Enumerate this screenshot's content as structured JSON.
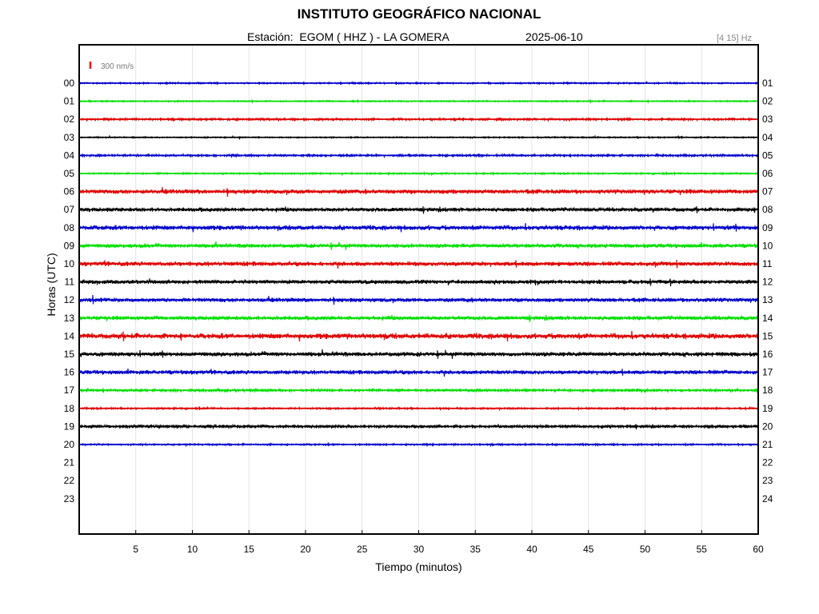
{
  "header": {
    "title": "INSTITUTO GEOGRÁFICO NACIONAL",
    "station_label": "Estación:  EGOM ( HHZ ) - LA GOMERA",
    "date": "2025-06-10",
    "filter": "[4 15] Hz"
  },
  "scale_bar": {
    "label": "300 nm/s",
    "color": "#ff0000"
  },
  "colors": {
    "black": "#000000",
    "red": "#e00000",
    "blue": "#0000cc",
    "green": "#00e000",
    "grid": "#e4e4e4"
  },
  "chart_data": {
    "type": "line",
    "xlabel": "Tiempo (minutos)",
    "ylabel": "Horas (UTC)",
    "xlim": [
      0,
      60
    ],
    "x_ticks": [
      5,
      10,
      15,
      20,
      25,
      30,
      35,
      40,
      45,
      50,
      55,
      60
    ],
    "left_hour_labels": [
      "00",
      "01",
      "02",
      "03",
      "04",
      "05",
      "06",
      "07",
      "08",
      "09",
      "10",
      "11",
      "12",
      "13",
      "14",
      "15",
      "16",
      "17",
      "18",
      "19",
      "20",
      "21",
      "22",
      "23"
    ],
    "right_hour_labels": [
      "01",
      "02",
      "03",
      "04",
      "05",
      "06",
      "07",
      "08",
      "09",
      "10",
      "11",
      "12",
      "13",
      "14",
      "15",
      "16",
      "17",
      "18",
      "19",
      "20",
      "21",
      "22",
      "23",
      "24"
    ],
    "grid": true,
    "traces": [
      {
        "hour": "00",
        "color": "blue",
        "amplitude": 0.7,
        "end_minute": 60
      },
      {
        "hour": "01",
        "color": "green",
        "amplitude": 0.6,
        "end_minute": 60
      },
      {
        "hour": "02",
        "color": "red",
        "amplitude": 1.0,
        "end_minute": 60
      },
      {
        "hour": "03",
        "color": "black",
        "amplitude": 0.6,
        "end_minute": 60
      },
      {
        "hour": "04",
        "color": "blue",
        "amplitude": 1.0,
        "end_minute": 60
      },
      {
        "hour": "05",
        "color": "green",
        "amplitude": 0.7,
        "end_minute": 60
      },
      {
        "hour": "06",
        "color": "red",
        "amplitude": 2.2,
        "end_minute": 60
      },
      {
        "hour": "07",
        "color": "black",
        "amplitude": 2.0,
        "end_minute": 60
      },
      {
        "hour": "08",
        "color": "blue",
        "amplitude": 2.4,
        "end_minute": 60
      },
      {
        "hour": "09",
        "color": "green",
        "amplitude": 2.0,
        "end_minute": 60
      },
      {
        "hour": "10",
        "color": "red",
        "amplitude": 2.2,
        "end_minute": 60
      },
      {
        "hour": "11",
        "color": "black",
        "amplitude": 2.0,
        "end_minute": 60
      },
      {
        "hour": "12",
        "color": "blue",
        "amplitude": 2.0,
        "end_minute": 60
      },
      {
        "hour": "13",
        "color": "green",
        "amplitude": 2.0,
        "end_minute": 60
      },
      {
        "hour": "14",
        "color": "red",
        "amplitude": 2.8,
        "end_minute": 60
      },
      {
        "hour": "15",
        "color": "black",
        "amplitude": 2.2,
        "end_minute": 60
      },
      {
        "hour": "16",
        "color": "blue",
        "amplitude": 2.0,
        "end_minute": 60
      },
      {
        "hour": "17",
        "color": "green",
        "amplitude": 1.2,
        "end_minute": 60
      },
      {
        "hour": "18",
        "color": "red",
        "amplitude": 0.8,
        "end_minute": 60
      },
      {
        "hour": "19",
        "color": "black",
        "amplitude": 1.5,
        "end_minute": 60
      },
      {
        "hour": "20",
        "color": "blue",
        "amplitude": 0.8,
        "end_minute": 60
      }
    ]
  }
}
